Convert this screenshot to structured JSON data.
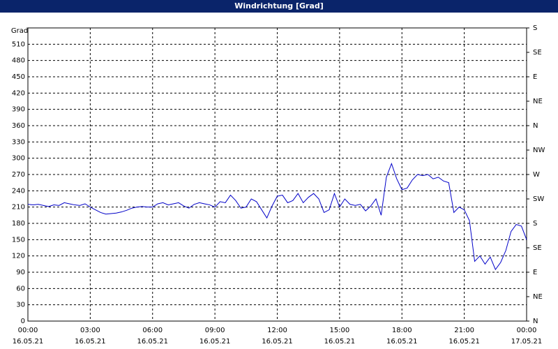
{
  "chart_data": {
    "type": "line",
    "title": "Windrichtung [Grad]",
    "ylabel": "Grad",
    "xlim": [
      0,
      24
    ],
    "xticks": [
      {
        "value": 0,
        "label": "00:00"
      },
      {
        "value": 3,
        "label": "03:00"
      },
      {
        "value": 6,
        "label": "06:00"
      },
      {
        "value": 9,
        "label": "09:00"
      },
      {
        "value": 12,
        "label": "12:00"
      },
      {
        "value": 15,
        "label": "15:00"
      },
      {
        "value": 18,
        "label": "18:00"
      },
      {
        "value": 21,
        "label": "21:00"
      },
      {
        "value": 24,
        "label": "00:00"
      }
    ],
    "xtick_dates": [
      "16.05.21",
      "16.05.21",
      "16.05.21",
      "16.05.21",
      "16.05.21",
      "16.05.21",
      "16.05.21",
      "16.05.21",
      "17.05.21"
    ],
    "ylim": [
      0,
      540
    ],
    "yticks": [
      0,
      30,
      60,
      90,
      120,
      150,
      180,
      210,
      240,
      270,
      300,
      330,
      360,
      390,
      420,
      450,
      480,
      510
    ],
    "y2lim": [
      0,
      540
    ],
    "y2ticks": [
      {
        "value": 540,
        "label": "S"
      },
      {
        "value": 495,
        "label": "SE"
      },
      {
        "value": 450,
        "label": "E"
      },
      {
        "value": 405,
        "label": "NE"
      },
      {
        "value": 360,
        "label": "N"
      },
      {
        "value": 315,
        "label": "NW"
      },
      {
        "value": 270,
        "label": "W"
      },
      {
        "value": 225,
        "label": "SW"
      },
      {
        "value": 180,
        "label": "S"
      },
      {
        "value": 135,
        "label": "SE"
      },
      {
        "value": 90,
        "label": "E"
      },
      {
        "value": 45,
        "label": "NE"
      },
      {
        "value": 0,
        "label": "N"
      }
    ],
    "grid": true,
    "x": [
      0,
      0.25,
      0.5,
      0.75,
      1,
      1.25,
      1.5,
      1.75,
      2,
      2.25,
      2.5,
      2.75,
      3,
      3.25,
      3.5,
      3.75,
      4,
      4.25,
      4.5,
      4.75,
      5,
      5.25,
      5.5,
      5.75,
      6,
      6.25,
      6.5,
      6.75,
      7,
      7.25,
      7.5,
      7.75,
      8,
      8.25,
      8.5,
      8.75,
      9,
      9.25,
      9.5,
      9.75,
      10,
      10.25,
      10.5,
      10.75,
      11,
      11.25,
      11.5,
      11.75,
      12,
      12.25,
      12.5,
      12.75,
      13,
      13.25,
      13.5,
      13.75,
      14,
      14.25,
      14.5,
      14.75,
      15,
      15.25,
      15.5,
      15.75,
      16,
      16.25,
      16.5,
      16.75,
      17,
      17.25,
      17.5,
      17.75,
      18,
      18.25,
      18.5,
      18.75,
      19,
      19.25,
      19.5,
      19.75,
      20,
      20.25,
      20.5,
      20.75,
      21,
      21.25,
      21.5,
      21.75,
      22,
      22.25,
      22.5,
      22.75,
      23,
      23.25,
      23.5,
      23.75,
      24
    ],
    "series": [
      {
        "color": "#0000c8",
        "values": [
          215,
          214,
          215,
          213,
          211,
          214,
          213,
          218,
          216,
          214,
          213,
          216,
          210,
          205,
          200,
          197,
          198,
          199,
          201,
          204,
          208,
          210,
          211,
          210,
          210,
          216,
          218,
          214,
          216,
          218,
          212,
          208,
          215,
          218,
          216,
          214,
          210,
          220,
          218,
          232,
          222,
          208,
          210,
          225,
          220,
          205,
          190,
          212,
          230,
          232,
          218,
          222,
          235,
          218,
          228,
          235,
          225,
          200,
          205,
          235,
          210,
          225,
          215,
          213,
          215,
          203,
          212,
          225,
          195,
          265,
          290,
          262,
          242,
          245,
          260,
          270,
          268,
          270,
          262,
          265,
          258,
          255,
          200,
          210,
          205,
          185,
          110,
          120,
          105,
          118,
          95,
          108,
          130,
          165,
          178,
          175,
          150
        ]
      }
    ]
  }
}
